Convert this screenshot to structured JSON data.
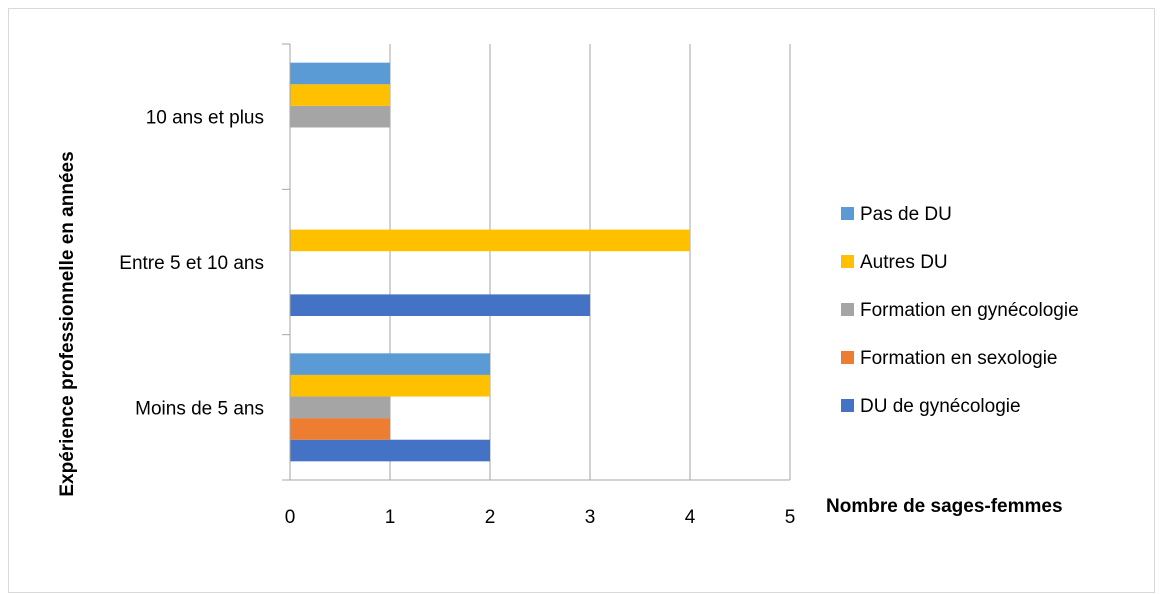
{
  "chart_data": {
    "type": "bar",
    "orientation": "horizontal",
    "title": "",
    "xlabel": "Nombre de sages-femmes",
    "ylabel": "Expérience professionnelle en années",
    "xlim": [
      0,
      5
    ],
    "xticks": [
      "0",
      "1",
      "2",
      "3",
      "4",
      "5"
    ],
    "grid": true,
    "legend_position": "right",
    "categories": [
      "Moins de 5 ans",
      "Entre 5 et 10 ans",
      "10 ans et plus"
    ],
    "series": [
      {
        "name": "DU de gynécologie",
        "color": "#4472C4",
        "values": [
          2,
          3,
          0
        ]
      },
      {
        "name": "Formation en sexologie",
        "color": "#ED7D31",
        "values": [
          1,
          0,
          0
        ]
      },
      {
        "name": "Formation en gynécologie",
        "color": "#A5A5A5",
        "values": [
          1,
          0,
          1
        ]
      },
      {
        "name": "Autres DU",
        "color": "#FFC000",
        "values": [
          2,
          4,
          1
        ]
      },
      {
        "name": "Pas de DU",
        "color": "#5B9BD5",
        "values": [
          2,
          0,
          1
        ]
      }
    ],
    "legend_order": [
      "Pas de DU",
      "Autres DU",
      "Formation en gynécologie",
      "Formation en sexologie",
      "DU de gynécologie"
    ]
  }
}
